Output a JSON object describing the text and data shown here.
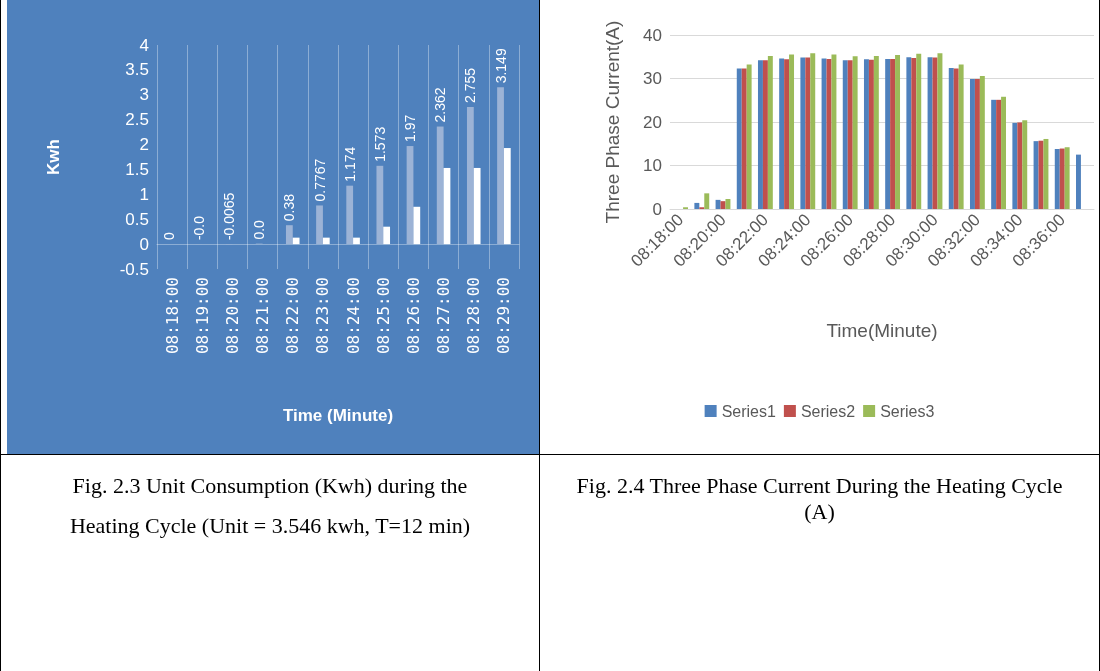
{
  "chart_data": [
    {
      "type": "bar",
      "ylabel": "Kwh",
      "xlabel": "Time (Minute)",
      "categories": [
        "08:18:00",
        "08:19:00",
        "08:20:00",
        "08:21:00",
        "08:22:00",
        "08:23:00",
        "08:24:00",
        "08:25:00",
        "08:26:00",
        "08:27:00",
        "08:28:00",
        "08:29:00"
      ],
      "series": [
        {
          "color": "#9cb3d6",
          "values": [
            0,
            -0.003,
            -0.0065,
            0.01,
            0.38,
            0.7767,
            1.174,
            1.573,
            1.97,
            2.362,
            2.755,
            3.149
          ],
          "value_labels": [
            "0",
            "-0.0",
            "-0.0065",
            "0.0",
            "0.38",
            "0.7767",
            "1.174",
            "1.573",
            "1.97",
            "2.362",
            "2.755",
            "3.149"
          ]
        },
        {
          "color": "#ffffff",
          "values": [
            0,
            0,
            0,
            0,
            0.13,
            0.13,
            0.13,
            0.35,
            0.75,
            1.53,
            1.53,
            1.93
          ]
        }
      ],
      "ylim": [
        -0.5,
        4
      ],
      "yticks": [
        -0.5,
        0,
        0.5,
        1,
        1.5,
        2,
        2.5,
        3,
        3.5,
        4
      ],
      "grid": "x",
      "legend": false,
      "annotations": [
        "Fig. 2.3 Unit Consumption (Kwh) during the",
        "Heating Cycle (Unit = 3.546 kwh, T=12 min)"
      ]
    },
    {
      "type": "bar",
      "ylabel": "Three Phase Current(A)",
      "xlabel": "Time(Minute)",
      "categories": [
        "08:18:00",
        null,
        "08:20:00",
        null,
        "08:22:00",
        null,
        "08:24:00",
        null,
        "08:26:00",
        null,
        "08:28:00",
        null,
        "08:30:00",
        null,
        "08:32:00",
        null,
        "08:34:00",
        null,
        "08:36:00",
        null
      ],
      "series": [
        {
          "name": "Series1",
          "color": "#4f81bd",
          "values": [
            null,
            1.4,
            2.1,
            32.3,
            34.2,
            34.6,
            34.8,
            34.6,
            34.2,
            34.4,
            34.5,
            34.9,
            34.9,
            32.4,
            29.9,
            25.1,
            19.8,
            15.6,
            13.8,
            12.5
          ]
        },
        {
          "name": "Series2",
          "color": "#c0504d",
          "values": [
            null,
            0.4,
            1.8,
            32.3,
            34.2,
            34.4,
            34.8,
            34.5,
            34.2,
            34.3,
            34.5,
            34.7,
            34.8,
            32.3,
            29.9,
            25.1,
            19.9,
            15.7,
            13.9,
            null
          ]
        },
        {
          "name": "Series3",
          "color": "#9bbb59",
          "values": [
            0.4,
            3.6,
            2.3,
            33.2,
            35.2,
            35.5,
            35.8,
            35.5,
            35.1,
            35.2,
            35.4,
            35.7,
            35.8,
            33.2,
            30.6,
            25.8,
            20.4,
            16.1,
            14.2,
            null
          ]
        }
      ],
      "ylim": [
        0,
        40
      ],
      "yticks": [
        0,
        10,
        20,
        30,
        40
      ],
      "grid": "y",
      "legend": "bottom",
      "annotations": [
        "Fig. 2.4 Three Phase Current During the Heating Cycle (A)"
      ]
    }
  ]
}
